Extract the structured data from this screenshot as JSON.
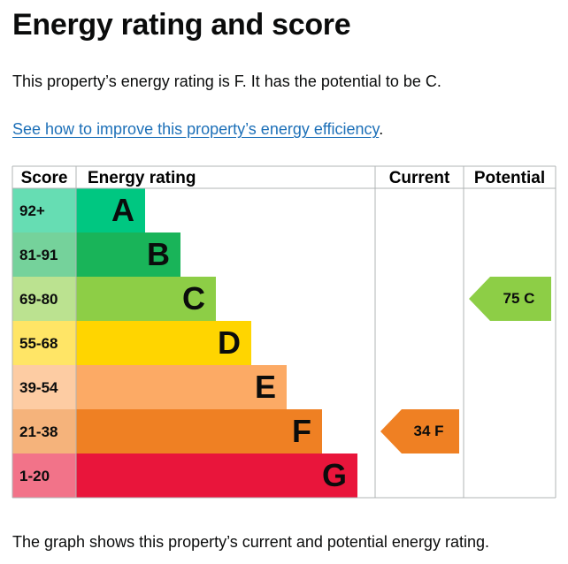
{
  "page": {
    "title": "Energy rating and score",
    "intro": "This property’s energy rating is F. It has the potential to be C.",
    "link_text": "See how to improve this property’s energy efficiency",
    "link_suffix": ".",
    "footer": "The graph shows this property’s current and potential energy rating."
  },
  "chart_data": {
    "type": "bar",
    "headers": {
      "score": "Score",
      "rating": "Energy rating",
      "current": "Current",
      "potential": "Potential"
    },
    "bands": [
      {
        "score": "92+",
        "letter": "A",
        "color": "#00c781",
        "score_bg": "#66ddb3"
      },
      {
        "score": "81-91",
        "letter": "B",
        "color": "#19b459",
        "score_bg": "#75d29b"
      },
      {
        "score": "69-80",
        "letter": "C",
        "color": "#8dce46",
        "score_bg": "#bbe290"
      },
      {
        "score": "55-68",
        "letter": "D",
        "color": "#ffd500",
        "score_bg": "#ffe566"
      },
      {
        "score": "39-54",
        "letter": "E",
        "color": "#fcaa65",
        "score_bg": "#fdcca3"
      },
      {
        "score": "21-38",
        "letter": "F",
        "color": "#ef8023",
        "score_bg": "#f5b37b"
      },
      {
        "score": "1-20",
        "letter": "G",
        "color": "#e9153b",
        "score_bg": "#f27389"
      }
    ],
    "current": {
      "value": 34,
      "letter": "F",
      "label": "34 F",
      "color": "#ef8023"
    },
    "potential": {
      "value": 75,
      "letter": "C",
      "label": "75 C",
      "color": "#8dce46"
    }
  }
}
